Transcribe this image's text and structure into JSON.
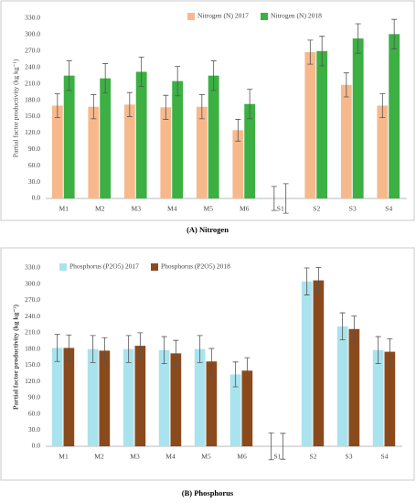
{
  "chart_data": [
    {
      "type": "bar",
      "caption": "(A) Nitrogen",
      "y_label": "Partial factor productivity (kg kg⁻¹)",
      "categories": [
        "M1",
        "M2",
        "M3",
        "M4",
        "M5",
        "M6",
        "S1",
        "S2",
        "S3",
        "S4"
      ],
      "series": [
        {
          "name": "Nitrogen (N) 2017",
          "color": "#f7b98c",
          "values": [
            170,
            168,
            172,
            167,
            168,
            125,
            0,
            268,
            208,
            170
          ],
          "errors": [
            22,
            22,
            22,
            22,
            22,
            20,
            22,
            22,
            22,
            22
          ]
        },
        {
          "name": "Nitrogen (N) 2018",
          "color": "#3cb043",
          "values": [
            225,
            220,
            232,
            215,
            225,
            173,
            0,
            270,
            293,
            301
          ],
          "errors": [
            27,
            27,
            27,
            27,
            27,
            27,
            27,
            27,
            27,
            27
          ]
        }
      ],
      "ylim": [
        0,
        330
      ],
      "yticks": [
        {
          "value": 0,
          "label": "0.0"
        },
        {
          "value": 30,
          "label": "30.0"
        },
        {
          "value": 60,
          "label": "60.0"
        },
        {
          "value": 90,
          "label": "90.0"
        },
        {
          "value": 120,
          "label": "120.0"
        },
        {
          "value": 150,
          "label": "150.0"
        },
        {
          "value": 180,
          "label": "180.0"
        },
        {
          "value": 210,
          "label": "210.0"
        },
        {
          "value": 240,
          "label": "240.0"
        },
        {
          "value": 270,
          "label": "270.0"
        },
        {
          "value": 300,
          "label": "300.0"
        },
        {
          "value": 330,
          "label": "330.0"
        }
      ],
      "grid": false,
      "legend": "top"
    },
    {
      "type": "bar",
      "caption": "(B) Phosphorus",
      "y_label": "Partial factor productivity (kg kg⁻¹)",
      "categories": [
        "M1",
        "M2",
        "M3",
        "M4",
        "M5",
        "M6",
        "S1",
        "S2",
        "S3",
        "S4"
      ],
      "series": [
        {
          "name": "Phosphorus (P2O5) 2017",
          "color": "#a9e3ee",
          "values": [
            182,
            180,
            180,
            178,
            180,
            133,
            0,
            305,
            222,
            178
          ],
          "errors": [
            25,
            25,
            25,
            25,
            25,
            23,
            25,
            25,
            25,
            25
          ]
        },
        {
          "name": "Phosphorus (P2O5) 2018",
          "color": "#8b4a1c",
          "values": [
            182,
            177,
            186,
            172,
            157,
            140,
            0,
            307,
            217,
            175
          ],
          "errors": [
            24,
            24,
            24,
            24,
            24,
            24,
            24,
            24,
            24,
            24
          ]
        }
      ],
      "ylim": [
        0,
        330
      ],
      "yticks": [
        {
          "value": 0,
          "label": "0.0"
        },
        {
          "value": 30,
          "label": "30.0"
        },
        {
          "value": 60,
          "label": "60.0"
        },
        {
          "value": 90,
          "label": "90.0"
        },
        {
          "value": 120,
          "label": "120.0"
        },
        {
          "value": 150,
          "label": "150.0"
        },
        {
          "value": 180,
          "label": "180.0"
        },
        {
          "value": 210,
          "label": "210.0"
        },
        {
          "value": 240,
          "label": "240.0"
        },
        {
          "value": 270,
          "label": "270.0"
        },
        {
          "value": 300,
          "label": "300.0"
        },
        {
          "value": 330,
          "label": "330.0"
        }
      ],
      "grid": false,
      "legend": "top-left"
    }
  ]
}
